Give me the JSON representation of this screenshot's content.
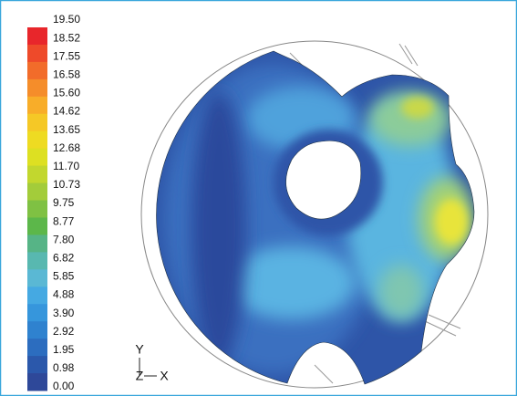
{
  "legend": {
    "labels": [
      "19.50",
      "18.52",
      "17.55",
      "16.58",
      "15.60",
      "14.62",
      "13.65",
      "12.68",
      "11.70",
      "10.73",
      "9.75",
      "8.77",
      "7.80",
      "6.82",
      "5.85",
      "4.88",
      "3.90",
      "2.92",
      "1.95",
      "0.98",
      "0.00"
    ]
  },
  "axes": {
    "y": "Y",
    "z": "Z",
    "x": "X"
  }
}
